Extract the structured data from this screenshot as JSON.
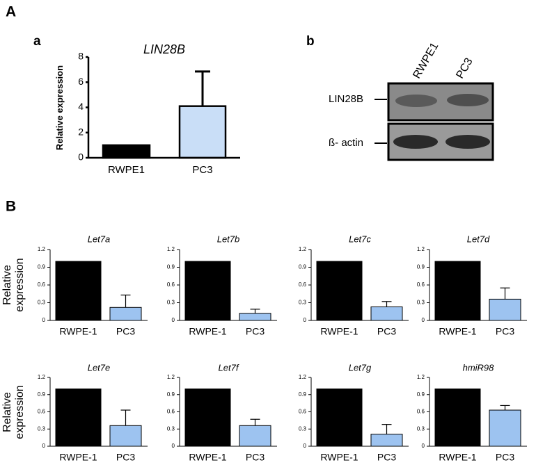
{
  "panel_labels": [
    "A",
    "a",
    "b",
    "B"
  ],
  "blot": {
    "lanes": [
      "RWPE1",
      "PC3"
    ],
    "bands": [
      "LIN28B",
      "ß- actin"
    ]
  },
  "chart_data": [
    {
      "type": "bar",
      "title": "LIN28B",
      "ylabel": "Relative expression",
      "categories": [
        "RWPE1",
        "PC3"
      ],
      "values": [
        1,
        4.1
      ],
      "errors": [
        null,
        2.75
      ],
      "colors": [
        "#000000",
        "#c9def7"
      ],
      "ylim": [
        0,
        8
      ],
      "yticks": [
        0,
        2,
        4,
        6,
        8
      ]
    },
    {
      "type": "bar",
      "title": "Let7a",
      "ylabel": "Relative expression",
      "categories": [
        "RWPE-1",
        "PC3"
      ],
      "values": [
        1,
        0.22
      ],
      "errors": [
        null,
        0.21
      ],
      "colors": [
        "#000000",
        "#9dc3f0"
      ],
      "ylim": [
        0,
        1.2
      ],
      "yticks": [
        0,
        0.3,
        0.6,
        0.9,
        1.2
      ]
    },
    {
      "type": "bar",
      "title": "Let7b",
      "categories": [
        "RWPE-1",
        "PC3"
      ],
      "values": [
        1,
        0.12
      ],
      "errors": [
        null,
        0.07
      ],
      "colors": [
        "#000000",
        "#9dc3f0"
      ],
      "ylim": [
        0,
        1.2
      ],
      "yticks": [
        0,
        0.3,
        0.6,
        0.9,
        1.2
      ]
    },
    {
      "type": "bar",
      "title": "Let7c",
      "categories": [
        "RWPE-1",
        "PC3"
      ],
      "values": [
        1,
        0.23
      ],
      "errors": [
        null,
        0.09
      ],
      "colors": [
        "#000000",
        "#9dc3f0"
      ],
      "ylim": [
        0,
        1.2
      ],
      "yticks": [
        0,
        0.3,
        0.6,
        0.9,
        1.2
      ]
    },
    {
      "type": "bar",
      "title": "Let7d",
      "categories": [
        "RWPE-1",
        "PC3"
      ],
      "values": [
        1,
        0.36
      ],
      "errors": [
        null,
        0.19
      ],
      "colors": [
        "#000000",
        "#9dc3f0"
      ],
      "ylim": [
        0,
        1.2
      ],
      "yticks": [
        0,
        0.3,
        0.6,
        0.9,
        1.2
      ]
    },
    {
      "type": "bar",
      "title": "Let7e",
      "ylabel": "Relative expression",
      "categories": [
        "RWPE-1",
        "PC3"
      ],
      "values": [
        1,
        0.36
      ],
      "errors": [
        null,
        0.27
      ],
      "colors": [
        "#000000",
        "#9dc3f0"
      ],
      "ylim": [
        0,
        1.2
      ],
      "yticks": [
        0,
        0.3,
        0.6,
        0.9,
        1.2
      ]
    },
    {
      "type": "bar",
      "title": "Let7f",
      "categories": [
        "RWPE-1",
        "PC3"
      ],
      "values": [
        1,
        0.36
      ],
      "errors": [
        null,
        0.11
      ],
      "colors": [
        "#000000",
        "#9dc3f0"
      ],
      "ylim": [
        0,
        1.2
      ],
      "yticks": [
        0,
        0.3,
        0.6,
        0.9,
        1.2
      ]
    },
    {
      "type": "bar",
      "title": "Let7g",
      "categories": [
        "RWPE-1",
        "PC3"
      ],
      "values": [
        1,
        0.21
      ],
      "errors": [
        null,
        0.17
      ],
      "colors": [
        "#000000",
        "#9dc3f0"
      ],
      "ylim": [
        0,
        1.2
      ],
      "yticks": [
        0,
        0.3,
        0.6,
        0.9,
        1.2
      ]
    },
    {
      "type": "bar",
      "title": "hmiR98",
      "categories": [
        "RWPE-1",
        "PC3"
      ],
      "values": [
        1,
        0.63
      ],
      "errors": [
        null,
        0.08
      ],
      "colors": [
        "#000000",
        "#9dc3f0"
      ],
      "ylim": [
        0,
        1.2
      ],
      "yticks": [
        0,
        0.3,
        0.6,
        0.9,
        1.2
      ]
    }
  ]
}
